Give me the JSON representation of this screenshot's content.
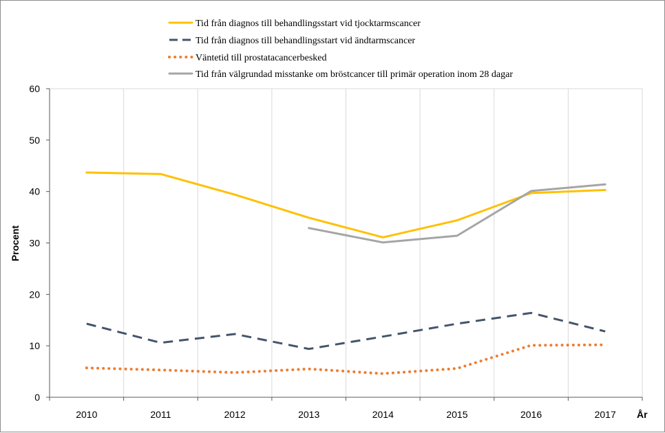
{
  "chart_data": {
    "type": "line",
    "title": "",
    "xlabel": "År",
    "ylabel": "Procent",
    "categories": [
      "2010",
      "2011",
      "2012",
      "2013",
      "2014",
      "2015",
      "2016",
      "2017"
    ],
    "ylim": [
      0,
      60
    ],
    "yticks": [
      0,
      10,
      20,
      30,
      40,
      50,
      60
    ],
    "grid": "vertical",
    "legend_position": "top",
    "series": [
      {
        "name": "Tid från diagnos till behandlingsstart vid tjocktarmscancer",
        "color": "#FFC000",
        "style": "solid",
        "values": [
          43.7,
          43.4,
          39.4,
          34.9,
          31.1,
          34.4,
          39.7,
          40.3
        ]
      },
      {
        "name": "Tid från diagnos till behandlingsstart vid ändtarmscancer",
        "color": "#44546A",
        "style": "dashed",
        "values": [
          14.3,
          10.6,
          12.3,
          9.4,
          11.8,
          14.3,
          16.4,
          12.8
        ]
      },
      {
        "name": "Väntetid till prostatacancerbesked",
        "color": "#ED7D31",
        "style": "dotted",
        "values": [
          5.7,
          5.3,
          4.8,
          5.5,
          4.6,
          5.6,
          10.1,
          10.2
        ]
      },
      {
        "name": "Tid från välgrundad misstanke om bröstcancer till primär operation inom 28 dagar",
        "color": "#A5A5A5",
        "style": "solid",
        "values": [
          null,
          null,
          null,
          32.9,
          30.1,
          31.4,
          40.1,
          41.4
        ]
      }
    ]
  }
}
